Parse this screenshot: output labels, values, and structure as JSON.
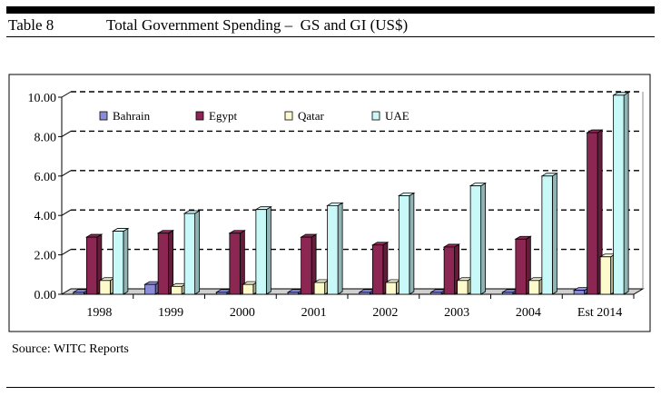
{
  "header": {
    "table_number": "Table 8",
    "title": "Total Government Spending –  GS and GI (US$)"
  },
  "source": "Source: WITC Reports",
  "chart_data": {
    "type": "bar",
    "title": "",
    "xlabel": "",
    "ylabel": "",
    "categories": [
      "1998",
      "1999",
      "2000",
      "2001",
      "2002",
      "2003",
      "2004",
      "Est 2014"
    ],
    "ylim": [
      0,
      10
    ],
    "yticks": [
      "0.00",
      "2.00",
      "4.00",
      "6.00",
      "8.00",
      "10.00"
    ],
    "grid": "dashed horizontal",
    "legend_position": "top-left",
    "series": [
      {
        "name": "Bahrain",
        "color": "#8b8bd8",
        "values": [
          0.1,
          0.5,
          0.1,
          0.1,
          0.1,
          0.1,
          0.1,
          0.2
        ]
      },
      {
        "name": "Egypt",
        "color": "#8b2752",
        "values": [
          2.9,
          3.1,
          3.1,
          2.9,
          2.5,
          2.4,
          2.8,
          8.2
        ]
      },
      {
        "name": "Qatar",
        "color": "#fdfacc",
        "values": [
          0.7,
          0.4,
          0.5,
          0.6,
          0.6,
          0.7,
          0.7,
          1.9
        ]
      },
      {
        "name": "UAE",
        "color": "#c8f8f8",
        "values": [
          3.2,
          4.1,
          4.3,
          4.5,
          5.0,
          5.5,
          6.0,
          10.1
        ]
      }
    ]
  }
}
